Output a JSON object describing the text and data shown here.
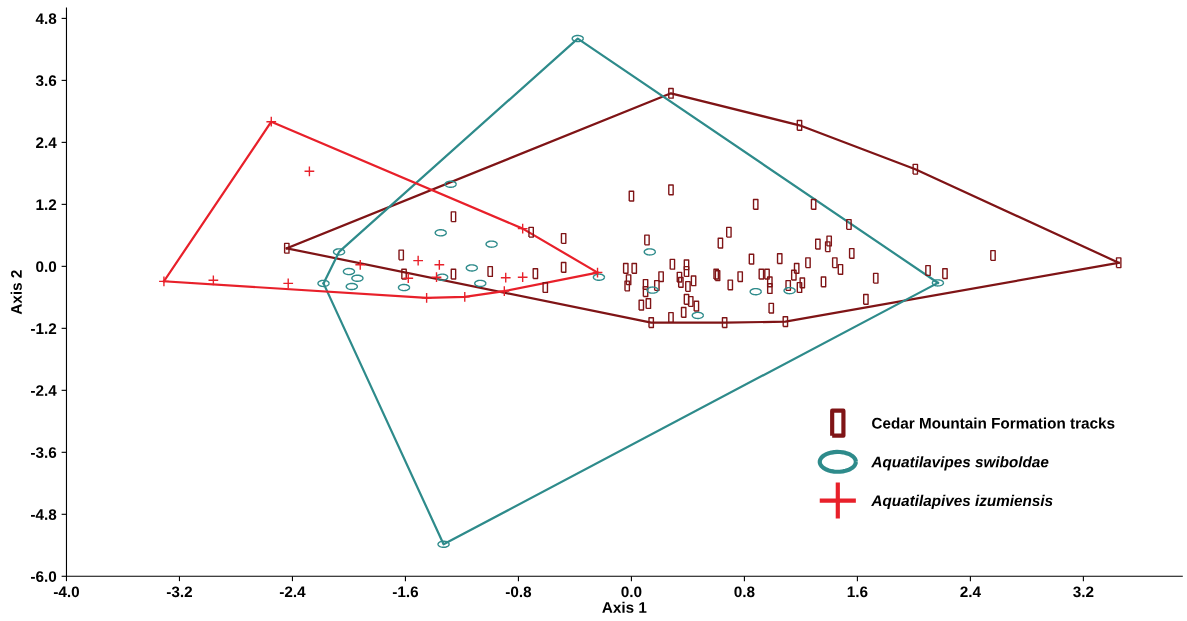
{
  "chart_data": {
    "type": "line",
    "xlabel": "Axis 1",
    "ylabel": "Axis 2",
    "xlim": [
      -4.0,
      3.9
    ],
    "ylim": [
      -6.0,
      5.0
    ],
    "xticks": [
      {
        "value": -4,
        "label": "-4.0"
      },
      -3.2,
      -2.4,
      -1.6,
      -0.8,
      {
        "value": 0,
        "label": "0.0"
      },
      0.8,
      1.6,
      2.4,
      3.2
    ],
    "yticks": [
      {
        "value": -6,
        "label": "-6.0"
      },
      -4.8,
      -3.6,
      -2.4,
      -1.2,
      {
        "value": 0,
        "label": "0.0"
      },
      1.2,
      2.4,
      3.6,
      4.8
    ],
    "grid": false,
    "legend": "lower right",
    "series": [
      {
        "color": "#7f1416",
        "x": [
          -2.44,
          0.28,
          1.19,
          2.01,
          3.45
        ],
        "values": [
          0.35,
          3.35,
          2.73,
          1.88,
          0.07
        ]
      },
      {
        "color": "#7f1416",
        "x": [
          -2.44,
          0.14,
          0.66,
          1.09,
          3.45
        ],
        "values": [
          0.35,
          -1.09,
          -1.09,
          -1.07,
          0.07
        ]
      },
      {
        "color": "#2e8b8b",
        "x": [
          -2.18,
          -2.07,
          -0.38,
          2.17
        ],
        "values": [
          -0.33,
          0.28,
          4.41,
          -0.32
        ]
      },
      {
        "color": "#2e8b8b",
        "x": [
          -2.18,
          -1.33,
          2.17
        ],
        "values": [
          -0.33,
          -5.38,
          -0.32
        ]
      },
      {
        "color": "#e8202a",
        "x": [
          -3.31,
          -2.55,
          -0.77,
          -0.24
        ],
        "values": [
          -0.29,
          2.8,
          0.73,
          -0.12
        ]
      },
      {
        "color": "#e8202a",
        "x": [
          -3.31,
          -1.45,
          -1.18,
          -0.9,
          -0.24
        ],
        "values": [
          -0.29,
          -0.61,
          -0.59,
          -0.48,
          -0.12
        ]
      },
      {
        "name": "Cedar Mountain Formation tracks",
        "type": "scatter",
        "marker": "square",
        "color": "#7f1416",
        "x": [
          -2.44,
          0.28,
          1.19,
          2.01,
          3.45,
          1.09,
          0.66,
          0.14,
          -1.26,
          -1.63,
          -1.61,
          -1.26,
          0.0,
          0.28,
          0.88,
          -0.71,
          -0.48,
          0.11,
          0.69,
          0.63,
          -1.0,
          -0.68,
          -0.48,
          -0.61,
          -0.04,
          0.02,
          -0.02,
          -0.03,
          0.1,
          0.1,
          0.18,
          0.21,
          0.29,
          0.39,
          0.39,
          0.34,
          0.35,
          0.4,
          0.44,
          0.07,
          0.12,
          0.39,
          0.42,
          0.46,
          0.37,
          0.28,
          0.6,
          0.61,
          0.77,
          0.7,
          0.85,
          0.92,
          1.29,
          1.54,
          1.32,
          1.4,
          1.39,
          1.05,
          1.25,
          1.44,
          1.56,
          1.17,
          1.48,
          0.96,
          0.98,
          0.98,
          1.15,
          1.11,
          1.21,
          1.19,
          1.36,
          1.73,
          1.66,
          0.99,
          2.1,
          2.22,
          2.56
        ],
        "values": [
          0.35,
          3.35,
          2.73,
          1.88,
          0.07,
          -1.07,
          -1.09,
          -1.09,
          0.96,
          0.22,
          -0.15,
          -0.15,
          1.36,
          1.48,
          1.2,
          0.66,
          0.54,
          0.51,
          0.66,
          0.45,
          -0.1,
          -0.14,
          -0.02,
          -0.41,
          -0.04,
          -0.04,
          -0.26,
          -0.38,
          -0.35,
          -0.49,
          -0.37,
          -0.2,
          0.04,
          0.03,
          -0.1,
          -0.21,
          -0.31,
          -0.39,
          -0.28,
          -0.75,
          -0.72,
          -0.64,
          -0.68,
          -0.77,
          -0.89,
          -0.99,
          -0.15,
          -0.18,
          -0.2,
          -0.36,
          0.14,
          -0.15,
          1.2,
          0.81,
          0.43,
          0.49,
          0.38,
          0.15,
          0.07,
          0.07,
          0.25,
          -0.04,
          -0.06,
          -0.15,
          -0.3,
          -0.43,
          -0.17,
          -0.37,
          -0.32,
          -0.41,
          -0.3,
          -0.23,
          -0.64,
          -0.81,
          -0.08,
          -0.14,
          0.21
        ]
      },
      {
        "name": "Aquatilavipes swiboldae",
        "type": "scatter",
        "marker": "circle",
        "color": "#2e8b8b",
        "x": [
          -2.07,
          -2.18,
          -2.0,
          -1.94,
          -1.98,
          -1.61,
          -1.35,
          -1.28,
          -1.13,
          -1.07,
          -1.34,
          -0.99,
          0.13,
          -0.23,
          0.15,
          0.47,
          0.88,
          1.12,
          2.17,
          -0.38,
          -1.33
        ],
        "values": [
          0.28,
          -0.33,
          -0.1,
          -0.23,
          -0.39,
          -0.41,
          0.65,
          1.59,
          -0.03,
          -0.33,
          -0.21,
          0.43,
          0.28,
          -0.21,
          -0.46,
          -0.95,
          -0.49,
          -0.47,
          -0.32,
          4.41,
          -5.38
        ]
      },
      {
        "name": "Aquatilapives izumiensis",
        "type": "scatter",
        "marker": "cross",
        "color": "#e8202a",
        "x": [
          -3.31,
          -2.96,
          -2.55,
          -2.43,
          -2.28,
          -1.92,
          -1.51,
          -1.36,
          -1.58,
          -1.38,
          -1.45,
          -1.18,
          -0.89,
          -0.77,
          -0.9,
          -0.77,
          -0.24
        ],
        "values": [
          -0.29,
          -0.27,
          2.8,
          -0.33,
          1.84,
          0.03,
          0.11,
          0.03,
          -0.23,
          -0.21,
          -0.61,
          -0.59,
          -0.22,
          -0.21,
          -0.48,
          0.73,
          -0.12
        ]
      }
    ]
  }
}
